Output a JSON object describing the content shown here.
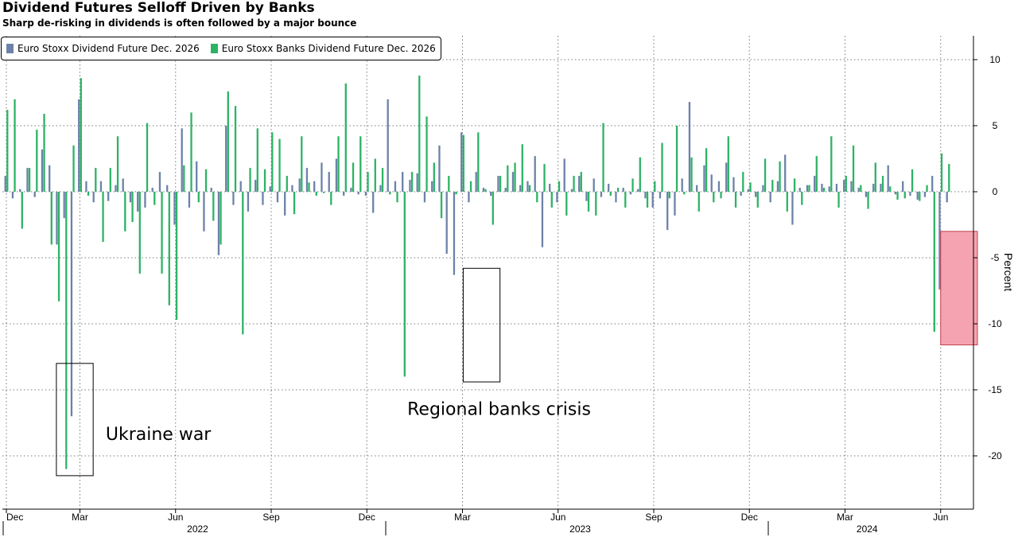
{
  "chart_data": {
    "type": "bar",
    "title": "Dividend Futures Selloff Driven by Banks",
    "subtitle": "Sharp de-risking in dividends is often followed by a major bounce",
    "ylabel": "Percent",
    "ylim": [
      -24,
      12
    ],
    "yticks": [
      10,
      5,
      0,
      -5,
      -10,
      -15,
      -20
    ],
    "grid": true,
    "legend_position": "top-left",
    "x_month_labels": [
      "Dec",
      "Mar",
      "Jun",
      "Sep",
      "Dec",
      "Mar",
      "Jun",
      "Sep",
      "Dec",
      "Mar",
      "Jun"
    ],
    "x_year_labels": [
      "2022",
      "2023",
      "2024"
    ],
    "x_range_weeks": [
      0,
      131
    ],
    "month_tick_weeks": [
      0,
      10,
      23,
      36,
      49,
      62,
      75,
      88,
      101,
      114,
      127
    ],
    "year_label_weeks": [
      26,
      78,
      117
    ],
    "year_divider_weeks": [
      52,
      104
    ],
    "series": [
      {
        "name": "Euro Stoxx Dividend Future Dec. 2026",
        "color": "#6d82a8",
        "points": [
          [
            0,
            1.2
          ],
          [
            1,
            -0.5
          ],
          [
            2,
            0.2
          ],
          [
            3,
            1.8
          ],
          [
            4,
            -0.4
          ],
          [
            5,
            3.2
          ],
          [
            6,
            2
          ],
          [
            7,
            -4
          ],
          [
            8,
            -2
          ],
          [
            9,
            -17
          ],
          [
            10,
            7
          ],
          [
            11,
            0.8
          ],
          [
            12,
            -0.8
          ],
          [
            13,
            0.8
          ],
          [
            14,
            -0.7
          ],
          [
            15,
            0.5
          ],
          [
            16,
            1
          ],
          [
            17,
            -0.8
          ],
          [
            18,
            -1.5
          ],
          [
            19,
            -1.2
          ],
          [
            20,
            0.3
          ],
          [
            21,
            1.5
          ],
          [
            22,
            0.5
          ],
          [
            23,
            -2.5
          ],
          [
            24,
            4.8
          ],
          [
            25,
            -1.2
          ],
          [
            26,
            2.3
          ],
          [
            27,
            -3
          ],
          [
            28,
            0.3
          ],
          [
            29,
            -4.8
          ],
          [
            30,
            5
          ],
          [
            31,
            -1
          ],
          [
            32,
            0.8
          ],
          [
            33,
            -1.5
          ],
          [
            34,
            0.9
          ],
          [
            35,
            -1
          ],
          [
            36,
            0.4
          ],
          [
            37,
            -0.8
          ],
          [
            38,
            -1.8
          ],
          [
            39,
            0.5
          ],
          [
            40,
            1
          ],
          [
            41,
            1.8
          ],
          [
            42,
            0.8
          ],
          [
            43,
            2.2
          ],
          [
            44,
            1.5
          ],
          [
            45,
            2.5
          ],
          [
            46,
            -0.3
          ],
          [
            47,
            0.3
          ],
          [
            48,
            -0.2
          ],
          [
            49,
            -0.3
          ],
          [
            50,
            -1.6
          ],
          [
            51,
            0.5
          ],
          [
            52,
            7
          ],
          [
            53,
            0.8
          ],
          [
            54,
            1.5
          ],
          [
            55,
            0.9
          ],
          [
            56,
            1.4
          ],
          [
            57,
            -0.8
          ],
          [
            58,
            0.8
          ],
          [
            59,
            3.5
          ],
          [
            60,
            -4.7
          ],
          [
            61,
            -6.3
          ],
          [
            62,
            4.5
          ],
          [
            63,
            -0.8
          ],
          [
            64,
            1.5
          ],
          [
            65,
            0.3
          ],
          [
            66,
            -0.3
          ],
          [
            67,
            1.2
          ],
          [
            68,
            0.3
          ],
          [
            69,
            1.5
          ],
          [
            70,
            0.5
          ],
          [
            71,
            0.8
          ],
          [
            72,
            2.7
          ],
          [
            73,
            -4.2
          ],
          [
            74,
            0.6
          ],
          [
            75,
            -0.8
          ],
          [
            76,
            2.5
          ],
          [
            77,
            0.2
          ],
          [
            78,
            1.2
          ],
          [
            79,
            -0.7
          ],
          [
            80,
            1
          ],
          [
            81,
            -0.4
          ],
          [
            82,
            0.6
          ],
          [
            83,
            -0.8
          ],
          [
            84,
            0.3
          ],
          [
            85,
            -0.2
          ],
          [
            86,
            0.2
          ],
          [
            87,
            -0.5
          ],
          [
            88,
            -1.2
          ],
          [
            89,
            -0.5
          ],
          [
            90,
            -2.9
          ],
          [
            91,
            -1.8
          ],
          [
            92,
            1
          ],
          [
            93,
            6.8
          ],
          [
            94,
            0.5
          ],
          [
            95,
            2
          ],
          [
            96,
            1.3
          ],
          [
            97,
            0.8
          ],
          [
            98,
            2.2
          ],
          [
            99,
            1.1
          ],
          [
            100,
            -0.3
          ],
          [
            101,
            0.2
          ],
          [
            102,
            -0.4
          ],
          [
            103,
            0.5
          ],
          [
            104,
            -0.8
          ],
          [
            105,
            0.8
          ],
          [
            106,
            2.8
          ],
          [
            107,
            -2.5
          ],
          [
            108,
            0.3
          ],
          [
            109,
            0.5
          ],
          [
            110,
            1.2
          ],
          [
            111,
            0.6
          ],
          [
            112,
            0.4
          ],
          [
            113,
            0.6
          ],
          [
            114,
            0.9
          ],
          [
            115,
            0.8
          ],
          [
            116,
            0.3
          ],
          [
            117,
            -0.4
          ],
          [
            118,
            0.6
          ],
          [
            119,
            0.6
          ],
          [
            120,
            2
          ],
          [
            121,
            -0.2
          ],
          [
            122,
            0.8
          ],
          [
            123,
            -0.3
          ],
          [
            124,
            -0.6
          ],
          [
            125,
            -0.4
          ],
          [
            126,
            1.2
          ],
          [
            127,
            -7.4
          ],
          [
            128,
            -0.8
          ]
        ]
      },
      {
        "name": "Euro Stoxx Banks Dividend Future Dec. 2026",
        "color": "#2db365",
        "points": [
          [
            0,
            6.2
          ],
          [
            1,
            7
          ],
          [
            2,
            -2.8
          ],
          [
            3,
            1.8
          ],
          [
            4,
            4.7
          ],
          [
            5,
            5.9
          ],
          [
            6,
            -4
          ],
          [
            7,
            -8.3
          ],
          [
            8,
            -21
          ],
          [
            9,
            3.5
          ],
          [
            10,
            8.6
          ],
          [
            11,
            -0.3
          ],
          [
            12,
            1.8
          ],
          [
            13,
            -3.8
          ],
          [
            14,
            1.8
          ],
          [
            15,
            4.2
          ],
          [
            16,
            -3
          ],
          [
            17,
            -2.3
          ],
          [
            18,
            -6.2
          ],
          [
            19,
            5.2
          ],
          [
            20,
            -1
          ],
          [
            21,
            -6.2
          ],
          [
            22,
            -8.6
          ],
          [
            23,
            -9.7
          ],
          [
            24,
            2
          ],
          [
            25,
            6
          ],
          [
            26,
            -0.8
          ],
          [
            27,
            1.7
          ],
          [
            28,
            -2.2
          ],
          [
            29,
            -4
          ],
          [
            30,
            7.6
          ],
          [
            31,
            6.5
          ],
          [
            32,
            -10.8
          ],
          [
            33,
            1.8
          ],
          [
            34,
            4.8
          ],
          [
            35,
            1.7
          ],
          [
            36,
            4.5
          ],
          [
            37,
            4
          ],
          [
            38,
            1.2
          ],
          [
            39,
            -1.7
          ],
          [
            40,
            4.2
          ],
          [
            41,
            0.7
          ],
          [
            42,
            -0.3
          ],
          [
            43,
            -0.1
          ],
          [
            44,
            -1
          ],
          [
            45,
            4.2
          ],
          [
            46,
            8.2
          ],
          [
            47,
            2.2
          ],
          [
            48,
            4.2
          ],
          [
            49,
            1.5
          ],
          [
            50,
            2.5
          ],
          [
            51,
            1.8
          ],
          [
            52,
            -0.2
          ],
          [
            53,
            -0.8
          ],
          [
            54,
            -14
          ],
          [
            55,
            1.5
          ],
          [
            56,
            8.8
          ],
          [
            57,
            5.7
          ],
          [
            58,
            2.2
          ],
          [
            59,
            -2
          ],
          [
            60,
            1.2
          ],
          [
            61,
            -0.2
          ],
          [
            62,
            4.3
          ],
          [
            63,
            0.8
          ],
          [
            64,
            4.5
          ],
          [
            65,
            0.2
          ],
          [
            66,
            -2.5
          ],
          [
            67,
            1.2
          ],
          [
            68,
            2
          ],
          [
            69,
            2.2
          ],
          [
            70,
            3.6
          ],
          [
            71,
            0.5
          ],
          [
            72,
            -0.8
          ],
          [
            73,
            2.1
          ],
          [
            74,
            -1.2
          ],
          [
            75,
            0.8
          ],
          [
            76,
            -1.8
          ],
          [
            77,
            1.2
          ],
          [
            78,
            1.5
          ],
          [
            79,
            -1.5
          ],
          [
            80,
            -1.8
          ],
          [
            81,
            5.2
          ],
          [
            82,
            -0.3
          ],
          [
            83,
            0.3
          ],
          [
            84,
            -1.2
          ],
          [
            85,
            1
          ],
          [
            86,
            2.6
          ],
          [
            87,
            -1.2
          ],
          [
            88,
            0.8
          ],
          [
            89,
            3.7
          ],
          [
            90,
            -0.5
          ],
          [
            91,
            5
          ],
          [
            92,
            -0.2
          ],
          [
            93,
            2.6
          ],
          [
            94,
            -1.5
          ],
          [
            95,
            3.3
          ],
          [
            96,
            -0.8
          ],
          [
            97,
            -0.5
          ],
          [
            98,
            4.2
          ],
          [
            99,
            -1.2
          ],
          [
            100,
            1.5
          ],
          [
            101,
            0.7
          ],
          [
            102,
            -1.2
          ],
          [
            103,
            2.5
          ],
          [
            104,
            0.9
          ],
          [
            105,
            2.3
          ],
          [
            106,
            -1.5
          ],
          [
            107,
            1
          ],
          [
            108,
            -1
          ],
          [
            109,
            0.5
          ],
          [
            110,
            2.7
          ],
          [
            111,
            0.3
          ],
          [
            112,
            4.2
          ],
          [
            113,
            -1.2
          ],
          [
            114,
            1.2
          ],
          [
            115,
            3.5
          ],
          [
            116,
            0.5
          ],
          [
            117,
            -1.3
          ],
          [
            118,
            2.2
          ],
          [
            119,
            1.2
          ],
          [
            120,
            0.4
          ],
          [
            121,
            -0.6
          ],
          [
            122,
            -0.5
          ],
          [
            123,
            1.7
          ],
          [
            124,
            -0.7
          ],
          [
            125,
            0.5
          ],
          [
            126,
            -10.6
          ],
          [
            127,
            2.9
          ],
          [
            128,
            2.1
          ]
        ]
      }
    ],
    "annotations": [
      {
        "text": "Ukraine war",
        "box_weeks": [
          6.8,
          11.8
        ],
        "box_values": [
          -13,
          -21.5
        ],
        "text_at": [
          13.5,
          -18.8
        ],
        "box_style": "outline"
      },
      {
        "text": "Regional banks crisis",
        "box_weeks": [
          62.1,
          67.1
        ],
        "box_values": [
          -5.8,
          -14.4
        ],
        "text_at": [
          54.5,
          -16.9
        ],
        "box_style": "outline"
      },
      {
        "text": "",
        "box_weeks": [
          127,
          132
        ],
        "box_values": [
          -3,
          -11.6
        ],
        "box_style": "red-fill"
      }
    ]
  }
}
